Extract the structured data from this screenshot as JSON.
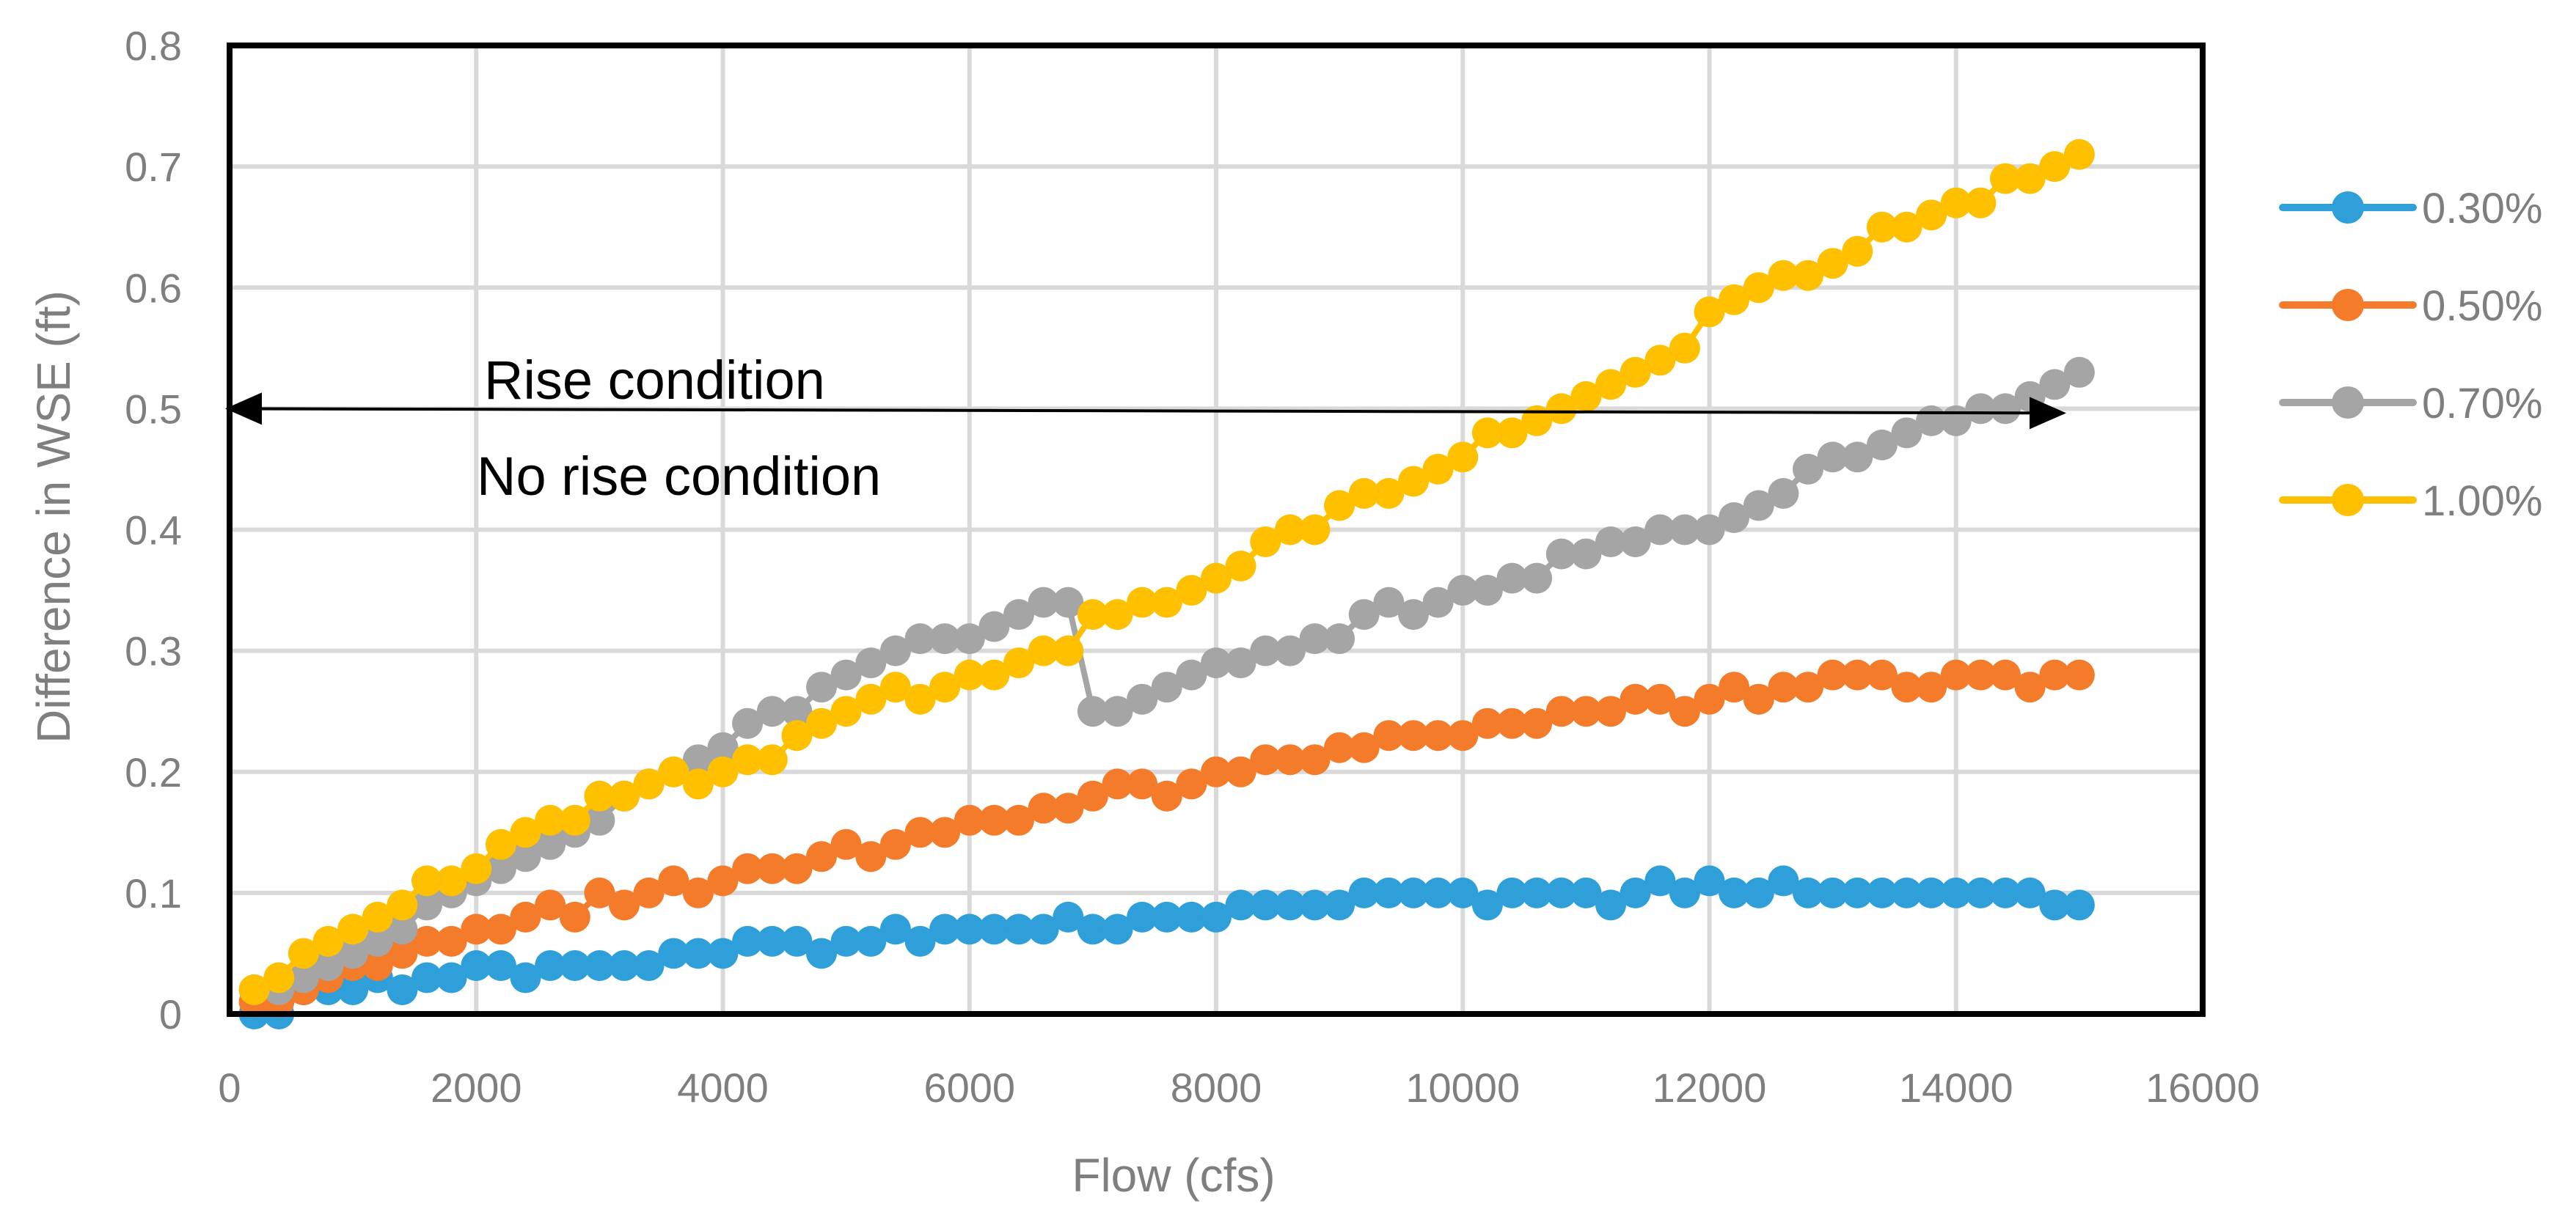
{
  "chart_data": {
    "type": "line",
    "title": "",
    "xlabel": "Flow (cfs)",
    "ylabel": "Difference in WSE (ft)",
    "xlim": [
      0,
      16000
    ],
    "ylim": [
      0,
      0.8
    ],
    "xticks": [
      0,
      2000,
      4000,
      6000,
      8000,
      10000,
      12000,
      14000,
      16000
    ],
    "yticks": [
      0,
      0.1,
      0.2,
      0.3,
      0.4,
      0.5,
      0.6,
      0.7,
      0.8
    ],
    "x_tick_labels": [
      "0",
      "2000",
      "4000",
      "6000",
      "8000",
      "10000",
      "12000",
      "14000",
      "16000"
    ],
    "y_tick_labels": [
      "0",
      "0.1",
      "0.2",
      "0.3",
      "0.4",
      "0.5",
      "0.6",
      "0.7",
      "0.8"
    ],
    "grid": true,
    "legend_position": "right",
    "x": [
      200,
      400,
      600,
      800,
      1000,
      1200,
      1400,
      1600,
      1800,
      2000,
      2200,
      2400,
      2600,
      2800,
      3000,
      3200,
      3400,
      3600,
      3800,
      4000,
      4200,
      4400,
      4600,
      4800,
      5000,
      5200,
      5400,
      5600,
      5800,
      6000,
      6200,
      6400,
      6600,
      6800,
      7000,
      7200,
      7400,
      7600,
      7800,
      8000,
      8200,
      8400,
      8600,
      8800,
      9000,
      9200,
      9400,
      9600,
      9800,
      10000,
      10200,
      10400,
      10600,
      10800,
      11000,
      11200,
      11400,
      11600,
      11800,
      12000,
      12200,
      12400,
      12600,
      12800,
      13000,
      13200,
      13400,
      13600,
      13800,
      14000,
      14200,
      14400,
      14600,
      14800,
      15000
    ],
    "series": [
      {
        "name": "0.30%",
        "color": "#2e9fd9",
        "values": [
          0.0,
          0.0,
          0.02,
          0.02,
          0.02,
          0.03,
          0.02,
          0.03,
          0.03,
          0.04,
          0.04,
          0.03,
          0.04,
          0.04,
          0.04,
          0.04,
          0.04,
          0.05,
          0.05,
          0.05,
          0.06,
          0.06,
          0.06,
          0.05,
          0.06,
          0.06,
          0.07,
          0.06,
          0.07,
          0.07,
          0.07,
          0.07,
          0.07,
          0.08,
          0.07,
          0.07,
          0.08,
          0.08,
          0.08,
          0.08,
          0.09,
          0.09,
          0.09,
          0.09,
          0.09,
          0.1,
          0.1,
          0.1,
          0.1,
          0.1,
          0.09,
          0.1,
          0.1,
          0.1,
          0.1,
          0.09,
          0.1,
          0.11,
          0.1,
          0.11,
          0.1,
          0.1,
          0.11,
          0.1,
          0.1,
          0.1,
          0.1,
          0.1,
          0.1,
          0.1,
          0.1,
          0.1,
          0.1,
          0.09,
          0.09
        ]
      },
      {
        "name": "0.50%",
        "color": "#f47b2a",
        "values": [
          0.01,
          0.01,
          0.02,
          0.03,
          0.04,
          0.04,
          0.05,
          0.06,
          0.06,
          0.07,
          0.07,
          0.08,
          0.09,
          0.08,
          0.1,
          0.09,
          0.1,
          0.11,
          0.1,
          0.11,
          0.12,
          0.12,
          0.12,
          0.13,
          0.14,
          0.13,
          0.14,
          0.15,
          0.15,
          0.16,
          0.16,
          0.16,
          0.17,
          0.17,
          0.18,
          0.19,
          0.19,
          0.18,
          0.19,
          0.2,
          0.2,
          0.21,
          0.21,
          0.21,
          0.22,
          0.22,
          0.23,
          0.23,
          0.23,
          0.23,
          0.24,
          0.24,
          0.24,
          0.25,
          0.25,
          0.25,
          0.26,
          0.26,
          0.25,
          0.26,
          0.27,
          0.26,
          0.27,
          0.27,
          0.28,
          0.28,
          0.28,
          0.27,
          0.27,
          0.28,
          0.28,
          0.28,
          0.27,
          0.28,
          0.28
        ]
      },
      {
        "name": "0.70%",
        "color": "#a5a5a5",
        "values": [
          0.02,
          0.02,
          0.03,
          0.04,
          0.05,
          0.06,
          0.07,
          0.09,
          0.1,
          0.11,
          0.12,
          0.13,
          0.14,
          0.15,
          0.16,
          0.18,
          0.19,
          0.2,
          0.21,
          0.22,
          0.24,
          0.25,
          0.25,
          0.27,
          0.28,
          0.29,
          0.3,
          0.31,
          0.31,
          0.31,
          0.32,
          0.33,
          0.34,
          0.34,
          0.25,
          0.25,
          0.26,
          0.27,
          0.28,
          0.29,
          0.29,
          0.3,
          0.3,
          0.31,
          0.31,
          0.33,
          0.34,
          0.33,
          0.34,
          0.35,
          0.35,
          0.36,
          0.36,
          0.38,
          0.38,
          0.39,
          0.39,
          0.4,
          0.4,
          0.4,
          0.41,
          0.42,
          0.43,
          0.45,
          0.46,
          0.46,
          0.47,
          0.48,
          0.49,
          0.49,
          0.5,
          0.5,
          0.51,
          0.52,
          0.53
        ]
      },
      {
        "name": "1.00%",
        "color": "#ffc000",
        "values": [
          0.02,
          0.03,
          0.05,
          0.06,
          0.07,
          0.08,
          0.09,
          0.11,
          0.11,
          0.12,
          0.14,
          0.15,
          0.16,
          0.16,
          0.18,
          0.18,
          0.19,
          0.2,
          0.19,
          0.2,
          0.21,
          0.21,
          0.23,
          0.24,
          0.25,
          0.26,
          0.27,
          0.26,
          0.27,
          0.28,
          0.28,
          0.29,
          0.3,
          0.3,
          0.33,
          0.33,
          0.34,
          0.34,
          0.35,
          0.36,
          0.37,
          0.39,
          0.4,
          0.4,
          0.42,
          0.43,
          0.43,
          0.44,
          0.45,
          0.46,
          0.48,
          0.48,
          0.49,
          0.5,
          0.51,
          0.52,
          0.53,
          0.54,
          0.55,
          0.58,
          0.59,
          0.6,
          0.61,
          0.61,
          0.62,
          0.63,
          0.65,
          0.65,
          0.66,
          0.67,
          0.67,
          0.69,
          0.69,
          0.7,
          0.71
        ]
      }
    ],
    "annotations": {
      "rise_label": "Rise condition",
      "no_rise_label": "No rise condition",
      "threshold_line": {
        "y": 0.5,
        "x_start": 0,
        "x_end": 14400,
        "double_arrow": true
      }
    }
  }
}
